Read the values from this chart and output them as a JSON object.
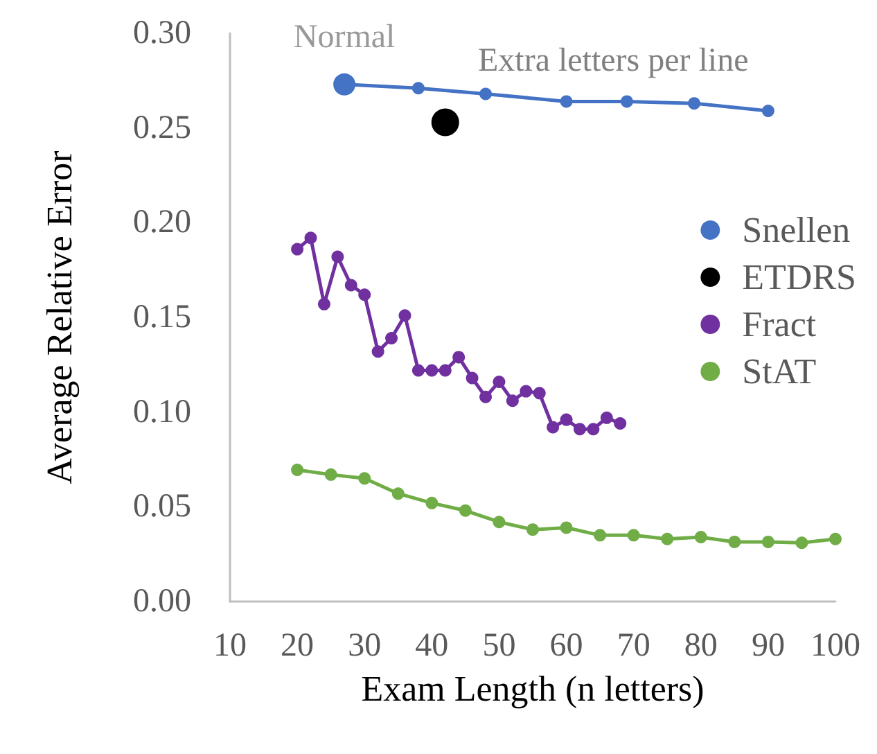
{
  "chart_data": {
    "type": "line",
    "xlabel": "Exam Length (n letters)",
    "ylabel": "Average Relative Error",
    "xlim": [
      10,
      100
    ],
    "xticks": [
      10,
      20,
      30,
      40,
      50,
      60,
      70,
      80,
      90,
      100
    ],
    "ylim": [
      0,
      0.3
    ],
    "yticks": [
      {
        "value": 0,
        "label": "0.00"
      },
      {
        "value": 0.05,
        "label": "0.05"
      },
      {
        "value": 0.1,
        "label": "0.10"
      },
      {
        "value": 0.15,
        "label": "0.15"
      },
      {
        "value": 0.2,
        "label": "0.20"
      },
      {
        "value": 0.25,
        "label": "0.25"
      },
      {
        "value": 0.3,
        "label": "0.30"
      }
    ],
    "grid": false,
    "legend": "right",
    "marker": "circle",
    "line_style": "solid",
    "annotations": [
      {
        "text": "Normal",
        "x": 27,
        "y": 0.273
      },
      "Extra letters per line"
    ],
    "series": [
      {
        "name": "Snellen",
        "color": "#4472c4",
        "x": [
          27,
          38,
          48,
          60,
          69,
          79,
          90
        ],
        "values": [
          0.273,
          0.271,
          0.268,
          0.264,
          0.264,
          0.263,
          0.259
        ]
      },
      {
        "name": "ETDRS",
        "color": "#000000",
        "x": [
          42
        ],
        "values": [
          0.253
        ]
      },
      {
        "name": "Fract",
        "color": "#7030a0",
        "x": [
          20,
          22,
          24,
          26,
          28,
          30,
          32,
          34,
          36,
          38,
          40,
          42,
          44,
          46,
          48,
          50,
          52,
          54,
          56,
          58,
          60,
          62,
          64,
          66,
          68
        ],
        "values": [
          0.186,
          0.192,
          0.157,
          0.182,
          0.167,
          0.162,
          0.132,
          0.139,
          0.151,
          0.122,
          0.122,
          0.122,
          0.129,
          0.118,
          0.108,
          0.116,
          0.106,
          0.111,
          0.11,
          0.092,
          0.096,
          0.091,
          0.091,
          0.097,
          0.094
        ]
      },
      {
        "name": "StAT",
        "color": "#70ad47",
        "x": [
          20,
          25,
          30,
          35,
          40,
          45,
          50,
          55,
          60,
          65,
          70,
          75,
          80,
          85,
          90,
          95,
          100
        ],
        "values": [
          0.0695,
          0.067,
          0.065,
          0.057,
          0.052,
          0.048,
          0.042,
          0.038,
          0.039,
          0.035,
          0.035,
          0.033,
          0.034,
          0.0315,
          0.0315,
          0.031,
          0.033
        ]
      }
    ]
  }
}
